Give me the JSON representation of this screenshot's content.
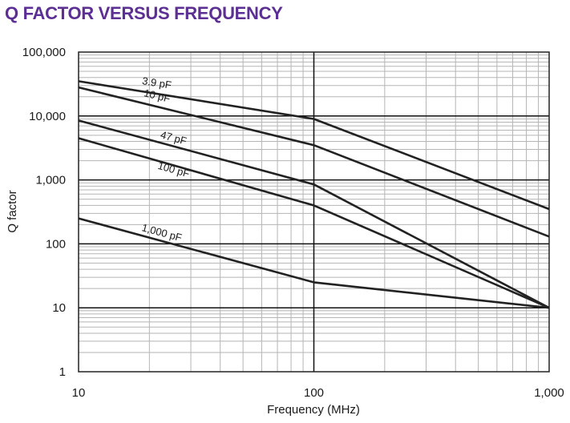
{
  "colors": {
    "title": "#5b2f93",
    "series_line": "#222222",
    "major_grid": "#111111",
    "minor_grid": "#b5b5b5",
    "frame": "#222222"
  },
  "chart_data": {
    "type": "line",
    "title": "Q FACTOR VERSUS FREQUENCY",
    "xlabel": "Frequency (MHz)",
    "ylabel": "Q factor",
    "x_scale": "log",
    "y_scale": "log",
    "xlim": [
      10,
      1000
    ],
    "ylim": [
      1,
      100000
    ],
    "x_ticks": [
      10,
      100,
      1000
    ],
    "x_tick_labels": [
      "10",
      "100",
      "1,000"
    ],
    "y_ticks": [
      1,
      10,
      100,
      1000,
      10000,
      100000
    ],
    "y_tick_labels": [
      "1",
      "10",
      "100",
      "1,000",
      "10,000",
      "100,000"
    ],
    "grid": true,
    "legend": "none",
    "series": [
      {
        "name": "3.9 pF",
        "x": [
          10,
          100,
          1000
        ],
        "y": [
          35000,
          9000,
          350
        ]
      },
      {
        "name": "10 pF",
        "x": [
          10,
          100,
          1000
        ],
        "y": [
          28000,
          3500,
          130
        ]
      },
      {
        "name": "47 pF",
        "x": [
          10,
          100,
          1000
        ],
        "y": [
          8500,
          850,
          10
        ]
      },
      {
        "name": "100 pF",
        "x": [
          10,
          100,
          1000
        ],
        "y": [
          4500,
          400,
          10
        ]
      },
      {
        "name": "1,000 pF",
        "x": [
          10,
          100,
          1000
        ],
        "y": [
          250,
          25,
          10
        ]
      }
    ]
  }
}
